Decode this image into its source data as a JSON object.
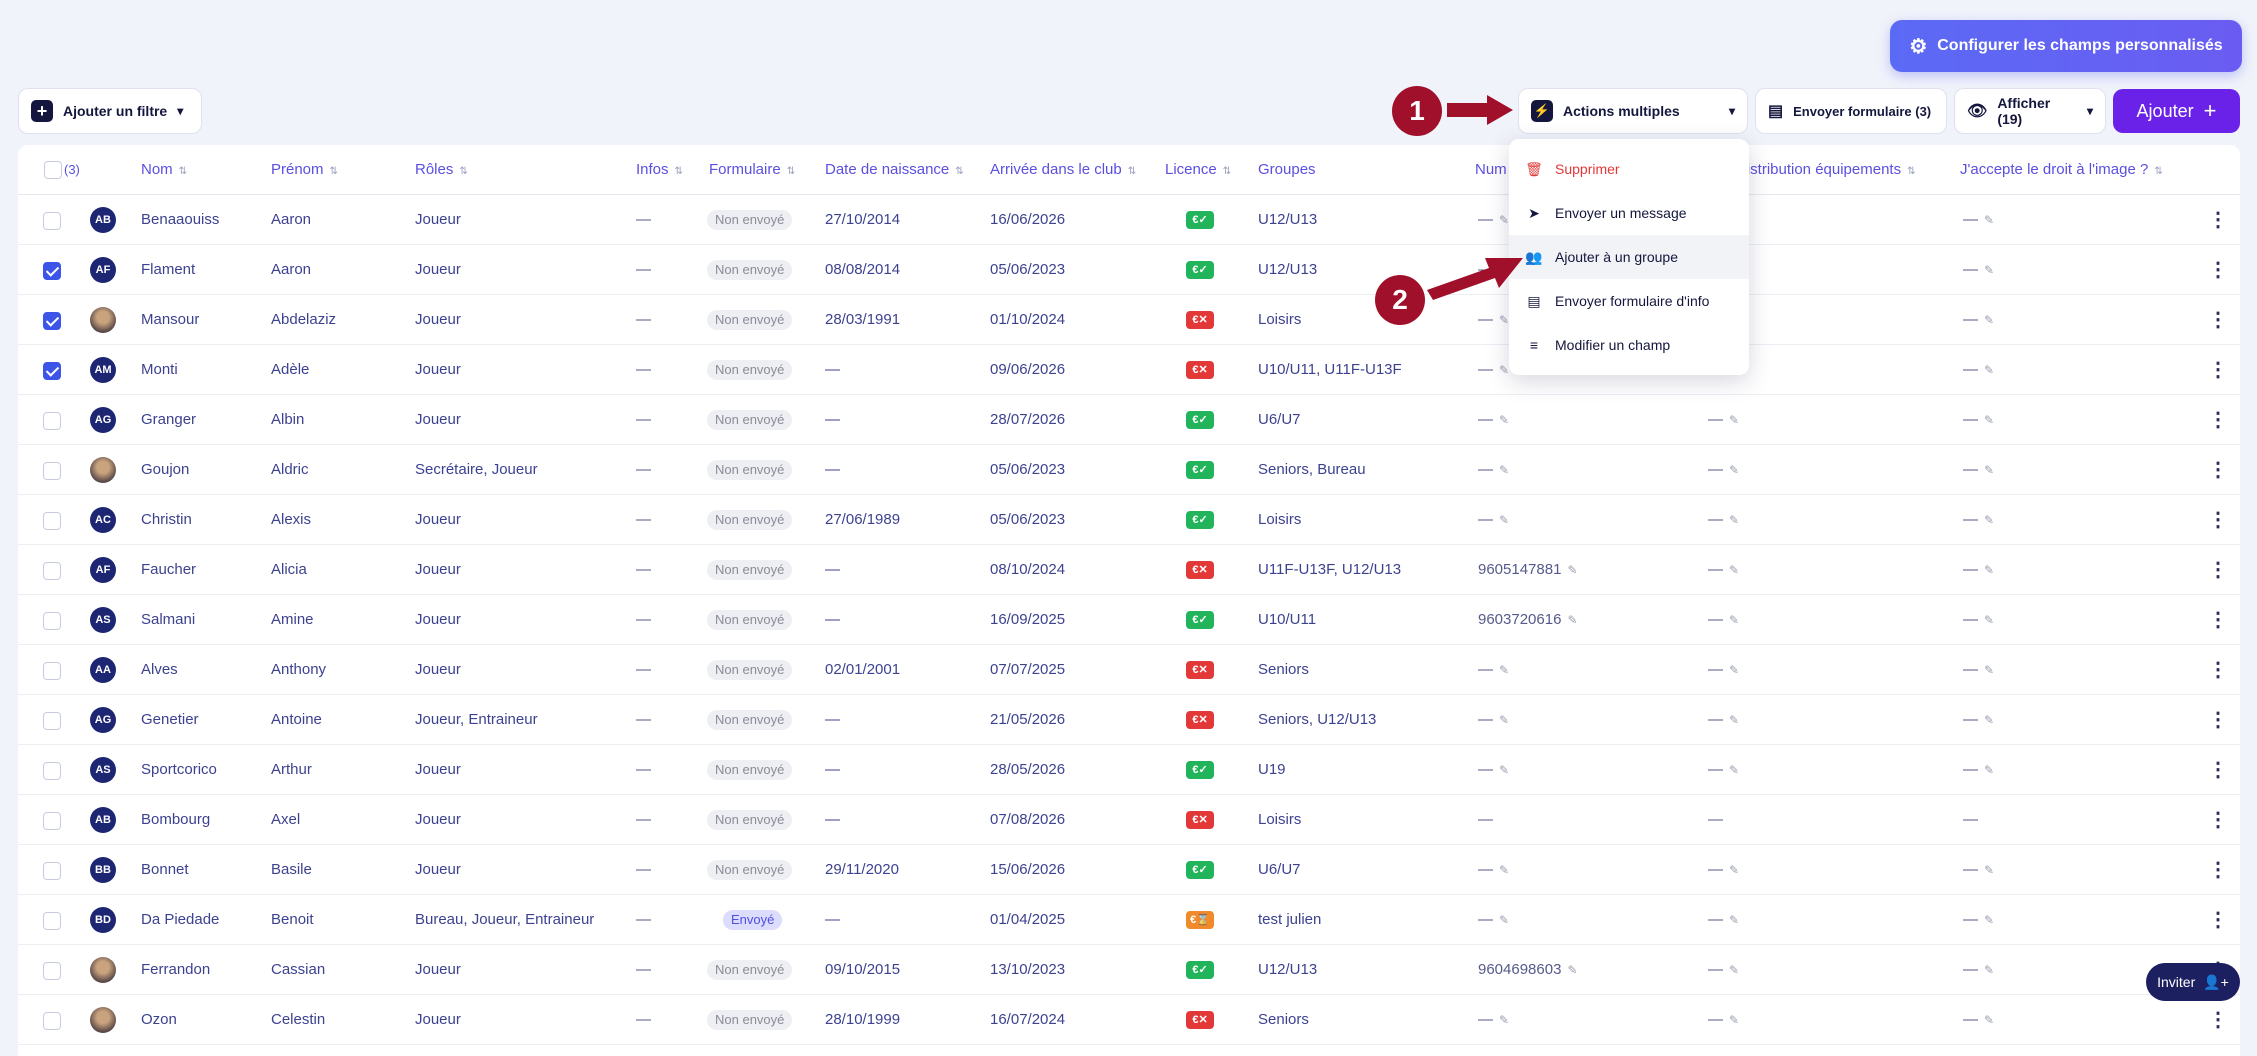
{
  "config_button": "Configurer les champs personnalisés",
  "toolbar": {
    "filter": "Ajouter un filtre",
    "multi": "Actions multiples",
    "send_form": "Envoyer formulaire",
    "send_form_count": "(3)",
    "afficher": "Afficher",
    "afficher_count": "(19)",
    "ajouter": "Ajouter"
  },
  "headers": {
    "count": "(3)",
    "nom": "Nom",
    "prenom": "Prénom",
    "roles": "Rôles",
    "infos": "Infos",
    "formulaire": "Formulaire",
    "naissance": "Date de naissance",
    "arrivee": "Arrivée dans le club",
    "licence": "Licence",
    "groupes": "Groupes",
    "num": "Num",
    "distribution": "Distribution équipements",
    "droit": "J'accepte le droit à l'image ?"
  },
  "dropdown": [
    {
      "label": "Supprimer",
      "icon": "trash-icon"
    },
    {
      "label": "Envoyer un message",
      "icon": "send-icon"
    },
    {
      "label": "Ajouter à un groupe",
      "icon": "add-user-icon"
    },
    {
      "label": "Envoyer formulaire d'info",
      "icon": "document-icon"
    },
    {
      "label": "Modifier un champ",
      "icon": "edit-list-icon"
    }
  ],
  "annotations": {
    "one": "1",
    "two": "2"
  },
  "inviter": "Inviter",
  "dash": "—",
  "rows": [
    {
      "checked": false,
      "initials": "AB",
      "photo": false,
      "nom": "Benaaouiss",
      "prenom": "Aaron",
      "roles": "Joueur",
      "form": "Non envoyé",
      "naissance": "27/10/2014",
      "arrivee": "16/06/2026",
      "lic": "ok",
      "groupes": "U12/U13",
      "num": "—",
      "pen": true
    },
    {
      "checked": true,
      "initials": "AF",
      "photo": false,
      "nom": "Flament",
      "prenom": "Aaron",
      "roles": "Joueur",
      "form": "Non envoyé",
      "naissance": "08/08/2014",
      "arrivee": "05/06/2023",
      "lic": "ok",
      "groupes": "U12/U13",
      "num": "—",
      "pen": true
    },
    {
      "checked": true,
      "initials": "",
      "photo": true,
      "nom": "Mansour",
      "prenom": "Abdelaziz",
      "roles": "Joueur",
      "form": "Non envoyé",
      "naissance": "28/03/1991",
      "arrivee": "01/10/2024",
      "lic": "ko",
      "groupes": "Loisirs",
      "num": "—",
      "pen": true
    },
    {
      "checked": true,
      "initials": "AM",
      "photo": false,
      "nom": "Monti",
      "prenom": "Adèle",
      "roles": "Joueur",
      "form": "Non envoyé",
      "naissance": "—",
      "arrivee": "09/06/2026",
      "lic": "ko",
      "groupes": "U10/U11, U11F-U13F",
      "num": "—",
      "pen": true
    },
    {
      "checked": false,
      "initials": "AG",
      "photo": false,
      "nom": "Granger",
      "prenom": "Albin",
      "roles": "Joueur",
      "form": "Non envoyé",
      "naissance": "—",
      "arrivee": "28/07/2026",
      "lic": "ok",
      "groupes": "U6/U7",
      "num": "—",
      "pen": true
    },
    {
      "checked": false,
      "initials": "",
      "photo": true,
      "nom": "Goujon",
      "prenom": "Aldric",
      "roles": "Secrétaire, Joueur",
      "form": "Non envoyé",
      "naissance": "—",
      "arrivee": "05/06/2023",
      "lic": "ok",
      "groupes": "Seniors, Bureau",
      "num": "—",
      "pen": true
    },
    {
      "checked": false,
      "initials": "AC",
      "photo": false,
      "nom": "Christin",
      "prenom": "Alexis",
      "roles": "Joueur",
      "form": "Non envoyé",
      "naissance": "27/06/1989",
      "arrivee": "05/06/2023",
      "lic": "ok",
      "groupes": "Loisirs",
      "num": "—",
      "pen": true
    },
    {
      "checked": false,
      "initials": "AF",
      "photo": false,
      "nom": "Faucher",
      "prenom": "Alicia",
      "roles": "Joueur",
      "form": "Non envoyé",
      "naissance": "—",
      "arrivee": "08/10/2024",
      "lic": "ko",
      "groupes": "U11F-U13F, U12/U13",
      "num": "9605147881",
      "pen": true
    },
    {
      "checked": false,
      "initials": "AS",
      "photo": false,
      "nom": "Salmani",
      "prenom": "Amine",
      "roles": "Joueur",
      "form": "Non envoyé",
      "naissance": "—",
      "arrivee": "16/09/2025",
      "lic": "ok",
      "groupes": "U10/U11",
      "num": "9603720616",
      "pen": true
    },
    {
      "checked": false,
      "initials": "AA",
      "photo": false,
      "nom": "Alves",
      "prenom": "Anthony",
      "roles": "Joueur",
      "form": "Non envoyé",
      "naissance": "02/01/2001",
      "arrivee": "07/07/2025",
      "lic": "ko",
      "groupes": "Seniors",
      "num": "—",
      "pen": true
    },
    {
      "checked": false,
      "initials": "AG",
      "photo": false,
      "nom": "Genetier",
      "prenom": "Antoine",
      "roles": "Joueur, Entraineur",
      "form": "Non envoyé",
      "naissance": "—",
      "arrivee": "21/05/2026",
      "lic": "ko",
      "groupes": "Seniors, U12/U13",
      "num": "—",
      "pen": true
    },
    {
      "checked": false,
      "initials": "AS",
      "photo": false,
      "nom": "Sportcorico",
      "prenom": "Arthur",
      "roles": "Joueur",
      "form": "Non envoyé",
      "naissance": "—",
      "arrivee": "28/05/2026",
      "lic": "ok",
      "groupes": "U19",
      "num": "—",
      "pen": true
    },
    {
      "checked": false,
      "initials": "AB",
      "photo": false,
      "nom": "Bombourg",
      "prenom": "Axel",
      "roles": "Joueur",
      "form": "Non envoyé",
      "naissance": "—",
      "arrivee": "07/08/2026",
      "lic": "ko",
      "groupes": "Loisirs",
      "num": "—",
      "pen": false
    },
    {
      "checked": false,
      "initials": "BB",
      "photo": false,
      "nom": "Bonnet",
      "prenom": "Basile",
      "roles": "Joueur",
      "form": "Non envoyé",
      "naissance": "29/11/2020",
      "arrivee": "15/06/2026",
      "lic": "ok",
      "groupes": "U6/U7",
      "num": "—",
      "pen": true
    },
    {
      "checked": false,
      "initials": "BD",
      "photo": false,
      "nom": "Da Piedade",
      "prenom": "Benoit",
      "roles": "Bureau, Joueur, Entraineur",
      "form": "Envoyé",
      "naissance": "—",
      "arrivee": "01/04/2025",
      "lic": "pend",
      "groupes": "test julien",
      "num": "—",
      "pen": true
    },
    {
      "checked": false,
      "initials": "",
      "photo": true,
      "nom": "Ferrandon",
      "prenom": "Cassian",
      "roles": "Joueur",
      "form": "Non envoyé",
      "naissance": "09/10/2015",
      "arrivee": "13/10/2023",
      "lic": "ok",
      "groupes": "U12/U13",
      "num": "9604698603",
      "pen": true
    },
    {
      "checked": false,
      "initials": "",
      "photo": true,
      "nom": "Ozon",
      "prenom": "Celestin",
      "roles": "Joueur",
      "form": "Non envoyé",
      "naissance": "28/10/1999",
      "arrivee": "16/07/2024",
      "lic": "ko",
      "groupes": "Seniors",
      "num": "—",
      "pen": true
    }
  ]
}
